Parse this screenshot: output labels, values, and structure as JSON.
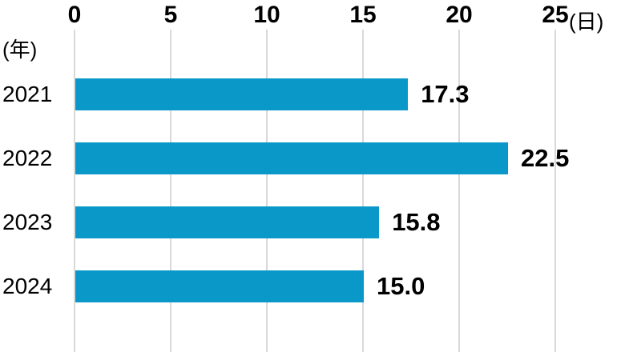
{
  "chart_data": {
    "type": "bar",
    "orientation": "horizontal",
    "title": "",
    "categories": [
      "2021",
      "2022",
      "2023",
      "2024"
    ],
    "values": [
      17.3,
      22.5,
      15.8,
      15.0
    ],
    "value_labels": [
      "17.3",
      "22.5",
      "15.8",
      "15.0"
    ],
    "x_ticks": [
      0,
      5,
      10,
      15,
      20,
      25
    ],
    "x_tick_labels": [
      "0",
      "5",
      "10",
      "15",
      "20",
      "25"
    ],
    "xlim": [
      0,
      25
    ],
    "xlabel": "(日)",
    "ylabel": "(年)",
    "grid": true,
    "legend": false,
    "bar_color": "#0998C8",
    "gridline_color": "#D9D9D9",
    "text_color": "#000000"
  }
}
